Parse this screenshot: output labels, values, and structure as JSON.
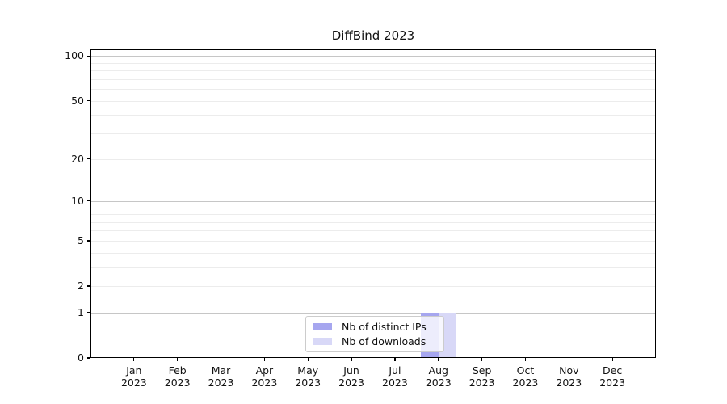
{
  "chart_data": {
    "type": "bar",
    "title": "DiffBind 2023",
    "categories": [
      "Jan",
      "Feb",
      "Mar",
      "Apr",
      "May",
      "Jun",
      "Jul",
      "Aug",
      "Sep",
      "Oct",
      "Nov",
      "Dec"
    ],
    "year_label": "2023",
    "series": [
      {
        "name": "Nb of distinct IPs",
        "color": "#a6a6ef",
        "values": [
          0,
          0,
          0,
          0,
          0,
          0,
          0,
          1,
          0,
          0,
          0,
          0
        ]
      },
      {
        "name": "Nb of downloads",
        "color": "#d8d8f7",
        "values": [
          0,
          0,
          0,
          0,
          0,
          0,
          0,
          1,
          0,
          0,
          0,
          0
        ]
      }
    ],
    "xlabel": "",
    "ylabel": "",
    "yscale": "log1p",
    "ylim": [
      0,
      111
    ],
    "yticks": [
      0,
      1,
      2,
      5,
      10,
      20,
      50,
      100
    ],
    "major_gridlines": [
      1,
      10,
      100
    ],
    "minor_gridlines": [
      2,
      3,
      4,
      5,
      6,
      7,
      8,
      9,
      20,
      30,
      40,
      50,
      60,
      70,
      80,
      90
    ],
    "grid": true,
    "legend_position": "lower center"
  }
}
